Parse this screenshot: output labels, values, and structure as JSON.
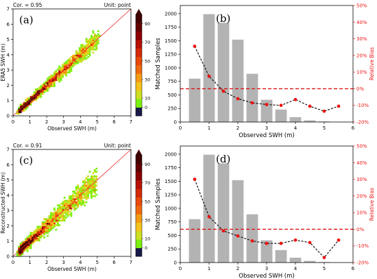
{
  "colors": {
    "bar": "#b3b3b3",
    "bias_line": "#000000",
    "bias_point": "#ee1111",
    "ref_line": "#dd1111",
    "diag_line": "#ee2222",
    "right_axis": "#ee1111"
  },
  "colorbar": {
    "ticks": [
      "0",
      "10",
      "30",
      "50",
      "70",
      "90"
    ],
    "colors": [
      "#1a1a4a",
      "#7cf00f",
      "#cddf22",
      "#f4c21a",
      "#f49a14",
      "#ee6a10",
      "#e84a0c",
      "#d22a06",
      "#b51204",
      "#8a0202",
      "#620000",
      "#420000"
    ]
  },
  "chart_data": [
    {
      "type": "heatmap",
      "panel_label": "(a)",
      "corner_left": "Cor. = 0.95",
      "corner_right": "Unit: point",
      "xlabel": "Observed SWH (m)",
      "ylabel": "ERA5 SWH (m)",
      "xlim": [
        0,
        7
      ],
      "ylim": [
        0,
        7
      ],
      "xticks": [
        "0",
        "1",
        "2",
        "3",
        "4",
        "5",
        "6",
        "7"
      ],
      "yticks": [
        "0",
        "1",
        "2",
        "3",
        "4",
        "5",
        "6",
        "7"
      ],
      "correlation": 0.95,
      "reference_line": "y = x",
      "scatter_spread": 0.28,
      "sample_count": 2300,
      "seed": 11
    },
    {
      "type": "bar",
      "panel_label": "(b)",
      "xlabel": "Observed SWH (m)",
      "ylabel": "Matched Samples",
      "y2label": "Relative Bias",
      "xlim": [
        0,
        6
      ],
      "ylim": [
        0,
        2150
      ],
      "y2lim": [
        -20,
        50
      ],
      "xticks": [
        "0",
        "1",
        "2",
        "3",
        "4",
        "5",
        "6"
      ],
      "yticks": [
        "0",
        "250",
        "500",
        "750",
        "1000",
        "1250",
        "1500",
        "1750",
        "2000"
      ],
      "y2ticks": [
        "-20%",
        "-10%",
        "0%",
        "10%",
        "20%",
        "30%",
        "40%",
        "50%"
      ],
      "x": [
        0.5,
        1.0,
        1.5,
        2.0,
        2.5,
        3.0,
        3.5,
        4.0,
        4.5,
        5.0,
        5.5
      ],
      "values": [
        800,
        1990,
        1830,
        1520,
        890,
        410,
        230,
        90,
        30,
        10,
        0
      ],
      "relative_bias": [
        25.5,
        7.5,
        -1.5,
        -6,
        -8.5,
        -9.5,
        -10,
        -6.5,
        -10.5,
        -13.5,
        -10.5
      ],
      "reference_bias": 0
    },
    {
      "type": "heatmap",
      "panel_label": "(c)",
      "corner_left": "Cor. = 0.91",
      "corner_right": "Unit: point",
      "xlabel": "Observed SWH (m)",
      "ylabel": "Reconstructed SWH (m)",
      "xlim": [
        0,
        7
      ],
      "ylim": [
        0,
        7
      ],
      "xticks": [
        "0",
        "1",
        "2",
        "3",
        "4",
        "5",
        "6",
        "7"
      ],
      "yticks": [
        "0",
        "1",
        "2",
        "3",
        "4",
        "5",
        "6",
        "7"
      ],
      "correlation": 0.91,
      "reference_line": "y = x",
      "scatter_spread": 0.42,
      "sample_count": 2300,
      "seed": 29
    },
    {
      "type": "bar",
      "panel_label": "(d)",
      "xlabel": "Observed SWH (m)",
      "ylabel": "Matched Samples",
      "y2label": "Relative Bias",
      "xlim": [
        0,
        6
      ],
      "ylim": [
        0,
        2150
      ],
      "y2lim": [
        -20,
        50
      ],
      "xticks": [
        "0",
        "1",
        "2",
        "3",
        "4",
        "5",
        "6"
      ],
      "yticks": [
        "0",
        "250",
        "500",
        "750",
        "1000",
        "1250",
        "1500",
        "1750",
        "2000"
      ],
      "y2ticks": [
        "-20%",
        "-10%",
        "0%",
        "10%",
        "20%",
        "30%",
        "40%",
        "50%"
      ],
      "x": [
        0.5,
        1.0,
        1.5,
        2.0,
        2.5,
        3.0,
        3.5,
        4.0,
        4.5,
        5.0,
        5.5
      ],
      "values": [
        800,
        1990,
        1830,
        1520,
        890,
        410,
        230,
        90,
        30,
        10,
        0
      ],
      "relative_bias": [
        30,
        7.5,
        -1,
        -4,
        -7,
        -8.5,
        -8.5,
        -6.5,
        -8,
        -17,
        -6.5
      ],
      "reference_bias": 0
    }
  ]
}
